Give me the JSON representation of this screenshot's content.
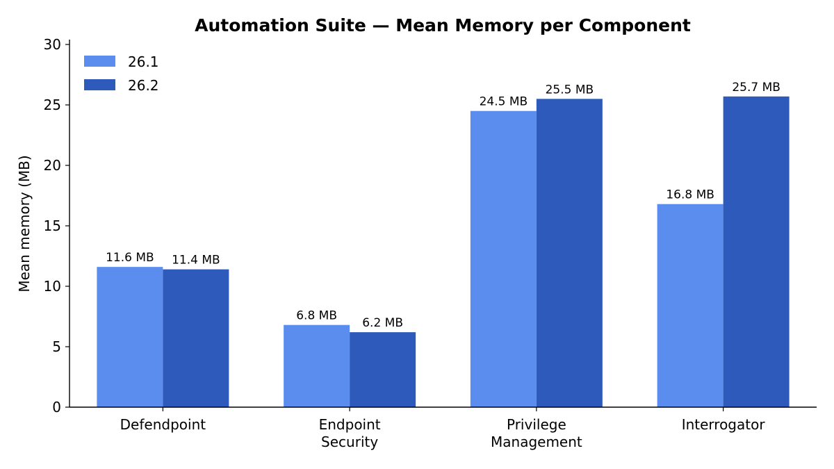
{
  "chart_data": {
    "type": "bar",
    "title": "Automation Suite — Mean Memory per Component",
    "ylabel": "Mean memory (MB)",
    "xlabel": "",
    "ylim": [
      0,
      30
    ],
    "yticks": [
      0,
      5,
      10,
      15,
      20,
      25,
      30
    ],
    "grid": false,
    "legend_position": "top-left",
    "categories": [
      [
        "Defendpoint"
      ],
      [
        "Endpoint",
        "Security"
      ],
      [
        "Privilege",
        "Management"
      ],
      [
        "Interrogator"
      ]
    ],
    "series": [
      {
        "name": "26.1",
        "color": "#5b8def",
        "values": [
          11.6,
          6.8,
          24.5,
          16.8
        ],
        "labels": [
          "11.6 MB",
          "6.8 MB",
          "24.5 MB",
          "16.8 MB"
        ]
      },
      {
        "name": "26.2",
        "color": "#2e5bbb",
        "values": [
          11.4,
          6.2,
          25.5,
          25.7
        ],
        "labels": [
          "11.4 MB",
          "6.2 MB",
          "25.5 MB",
          "25.7 MB"
        ]
      }
    ]
  }
}
